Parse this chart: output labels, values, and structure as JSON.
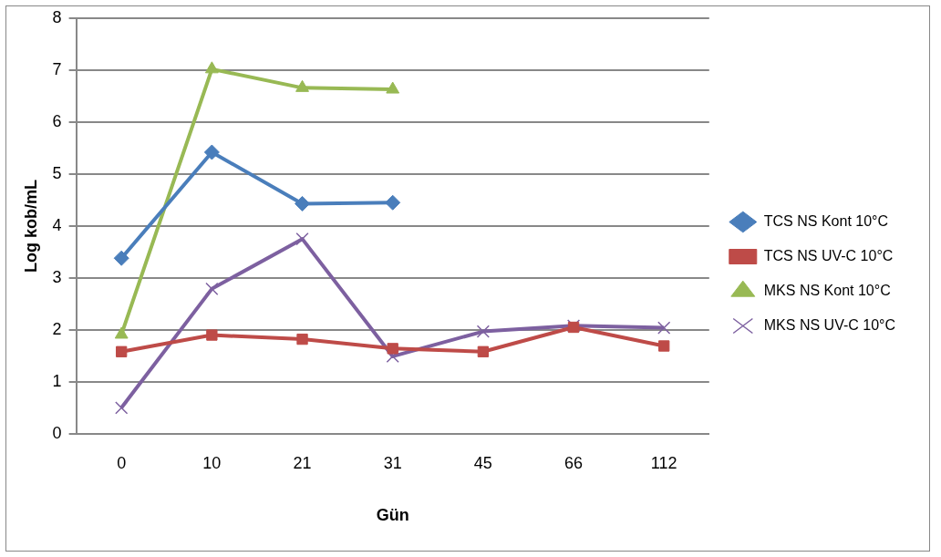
{
  "chart_data": {
    "type": "line",
    "xlabel": "Gün",
    "ylabel": "Log kob/mL",
    "categories": [
      "0",
      "10",
      "21",
      "31",
      "45",
      "66",
      "112"
    ],
    "series": [
      {
        "name": "TCS NS Kont 10°C",
        "color": "#4a7ebb",
        "marker": "diamond",
        "values": [
          3.38,
          5.42,
          4.43,
          4.45,
          null,
          null,
          null
        ]
      },
      {
        "name": "TCS NS UV-C 10°C",
        "color": "#be4b48",
        "marker": "square",
        "values": [
          1.58,
          1.9,
          1.82,
          1.64,
          1.58,
          2.05,
          1.69
        ]
      },
      {
        "name": "MKS NS Kont 10°C",
        "color": "#98b954",
        "marker": "triangle",
        "values": [
          1.91,
          7.02,
          6.66,
          6.63,
          null,
          null,
          null
        ]
      },
      {
        "name": "MKS NS UV-C 10°C",
        "color": "#7d60a0",
        "marker": "cross",
        "values": [
          0.5,
          2.79,
          3.75,
          1.49,
          1.97,
          2.08,
          2.04
        ]
      }
    ],
    "ylim": [
      0,
      8
    ],
    "yticks": [
      0,
      1,
      2,
      3,
      4,
      5,
      6,
      7,
      8
    ],
    "grid": "y",
    "legend": "right"
  }
}
